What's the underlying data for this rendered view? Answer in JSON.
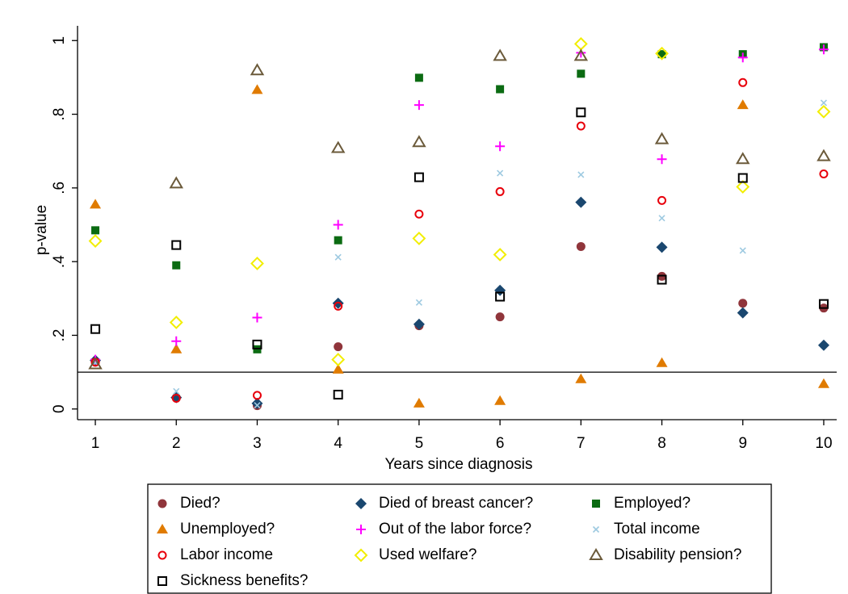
{
  "chart_data": {
    "type": "scatter",
    "xlabel": "Years since diagnosis",
    "ylabel": "p-value",
    "x": [
      1,
      2,
      3,
      4,
      5,
      6,
      7,
      8,
      9,
      10
    ],
    "xlim": [
      0.78,
      10.16
    ],
    "xticks": [
      1,
      2,
      3,
      4,
      5,
      6,
      7,
      8,
      9,
      10
    ],
    "ylim": [
      -0.029,
      1.04
    ],
    "yticks": [
      0,
      {
        "value": 0.2,
        "label": ".2"
      },
      {
        "value": 0.4,
        "label": ".4"
      },
      {
        "value": 0.6,
        "label": ".6"
      },
      {
        "value": 0.8,
        "label": ".8"
      },
      1
    ],
    "hline": 0.1,
    "series": [
      {
        "name": "Died?",
        "color": "#90353b",
        "marker": "circle-filled",
        "values": [
          0.127,
          0.031,
          0.009,
          0.169,
          0.226,
          0.25,
          0.441,
          0.36,
          0.287,
          0.274
        ]
      },
      {
        "name": "Died of breast cancer?",
        "color": "#1a476f",
        "marker": "diamond-filled",
        "values": [
          0.132,
          0.031,
          0.015,
          0.287,
          0.23,
          0.322,
          0.561,
          0.439,
          0.261,
          0.173
        ]
      },
      {
        "name": "Employed?",
        "color": "#0b6b12",
        "marker": "square-filled",
        "values": [
          0.485,
          0.39,
          0.162,
          0.458,
          0.899,
          0.868,
          0.91,
          0.963,
          0.963,
          0.982
        ]
      },
      {
        "name": "Unemployed?",
        "color": "#e07b00",
        "marker": "triangle-filled",
        "values": [
          0.555,
          0.162,
          0.866,
          0.107,
          0.015,
          0.022,
          0.081,
          0.125,
          0.825,
          0.068
        ]
      },
      {
        "name": "Out of the labor force?",
        "color": "#ff00ff",
        "marker": "plus",
        "values": [
          0.134,
          0.184,
          0.248,
          0.5,
          0.825,
          0.713,
          0.967,
          0.678,
          0.954,
          0.976
        ]
      },
      {
        "name": "Total income",
        "color": "#9ecae1",
        "marker": "x",
        "values": [
          0.125,
          0.048,
          0.01,
          0.412,
          0.289,
          0.64,
          0.636,
          0.518,
          0.43,
          0.831
        ]
      },
      {
        "name": "Labor income",
        "color": "#e8000b",
        "marker": "circle-hollow",
        "values": [
          0.127,
          0.029,
          0.037,
          0.279,
          0.529,
          0.59,
          0.768,
          0.566,
          0.886,
          0.638
        ]
      },
      {
        "name": "Used welfare?",
        "color": "#f2ee00",
        "marker": "diamond-hollow",
        "values": [
          0.456,
          0.235,
          0.395,
          0.134,
          0.463,
          0.419,
          0.991,
          0.965,
          0.603,
          0.807
        ]
      },
      {
        "name": "Disability pension?",
        "color": "#6b5a3a",
        "marker": "triangle-hollow",
        "values": [
          0.121,
          0.612,
          0.919,
          0.708,
          0.724,
          0.958,
          0.958,
          0.732,
          0.678,
          0.686
        ]
      },
      {
        "name": "Sickness benefits?",
        "color": "#000000",
        "marker": "square-hollow",
        "values": [
          0.217,
          0.445,
          0.175,
          0.039,
          0.629,
          0.305,
          0.805,
          0.351,
          0.627,
          0.285
        ]
      }
    ]
  }
}
